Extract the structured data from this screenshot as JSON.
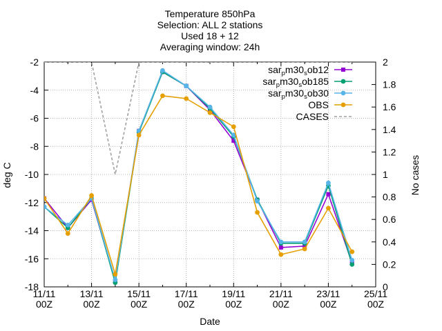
{
  "chart_data": {
    "type": "line",
    "title_lines": [
      "Temperature 850hPa",
      "Selection: ALL       2 stations",
      "Used 18 + 12",
      "Averaging window: 24h"
    ],
    "xlabel": "Date",
    "ylabel": "deg C",
    "y2label": "No cases",
    "x": [
      "11/11 00Z",
      "12/11 00Z",
      "13/11 00Z",
      "14/11 00Z",
      "15/11 00Z",
      "16/11 00Z",
      "17/11 00Z",
      "18/11 00Z",
      "19/11 00Z",
      "20/11 00Z",
      "21/11 00Z",
      "22/11 00Z",
      "23/11 00Z",
      "24/11 00Z"
    ],
    "xticks": [
      {
        "top": "11/11",
        "bottom": "00Z",
        "day": 0
      },
      {
        "top": "13/11",
        "bottom": "00Z",
        "day": 2
      },
      {
        "top": "15/11",
        "bottom": "00Z",
        "day": 4
      },
      {
        "top": "17/11",
        "bottom": "00Z",
        "day": 6
      },
      {
        "top": "19/11",
        "bottom": "00Z",
        "day": 8
      },
      {
        "top": "21/11",
        "bottom": "00Z",
        "day": 10
      },
      {
        "top": "23/11",
        "bottom": "00Z",
        "day": 12
      },
      {
        "top": "25/11",
        "bottom": "00Z",
        "day": 14
      }
    ],
    "xlim_days": [
      0,
      14
    ],
    "ylim": [
      -18,
      -2
    ],
    "yticks": [
      -18,
      -16,
      -14,
      -12,
      -10,
      -8,
      -6,
      -4,
      -2
    ],
    "y2lim": [
      0,
      2
    ],
    "y2ticks": [
      "0",
      "0.2",
      "0.4",
      "0.6",
      "0.8",
      "1",
      "1.2",
      "1.4",
      "1.6",
      "1.8",
      "2"
    ],
    "grid": true,
    "legend_position": "top-right",
    "series": [
      {
        "label_main": "sar",
        "label_sub": "p",
        "label_rest": "m30",
        "label_sub2": "s",
        "label_end": "ob12",
        "color": "#9400d3",
        "marker": "square",
        "values": [
          -11.7,
          -13.8,
          -11.8,
          -17.6,
          -6.9,
          -2.7,
          -3.7,
          -5.4,
          -7.6,
          -11.8,
          -15.2,
          -15.1,
          -11.4,
          -16.3
        ]
      },
      {
        "label_main": "sar",
        "label_sub": "p",
        "label_rest": "m30",
        "label_sub2": "s",
        "label_end": "ob185",
        "color": "#009e73",
        "marker": "circle",
        "values": [
          -12.3,
          -13.8,
          -11.7,
          -17.7,
          -7.0,
          -2.7,
          -3.7,
          -5.3,
          -7.3,
          -11.8,
          -14.9,
          -14.9,
          -10.8,
          -16.4
        ]
      },
      {
        "label_main": "sar",
        "label_sub": "p",
        "label_rest": "m30",
        "label_sub2": "s",
        "label_end": "ob30",
        "color": "#56b4e9",
        "marker": "circle",
        "values": [
          -12.3,
          -13.6,
          -11.7,
          -17.5,
          -6.9,
          -2.6,
          -3.7,
          -5.2,
          -7.2,
          -11.9,
          -14.8,
          -14.8,
          -10.6,
          -16.1
        ]
      },
      {
        "label_main": "OBS",
        "color": "#e69f00",
        "marker": "circle",
        "values": [
          -11.7,
          -14.2,
          -11.5,
          -17.1,
          -7.2,
          -4.4,
          -4.6,
          -5.6,
          -6.6,
          -12.7,
          -15.7,
          -15.3,
          -12.4,
          -15.5
        ]
      }
    ],
    "cases": {
      "label": "CASES",
      "color": "#a0a0a0",
      "axis": "y2",
      "values": [
        2,
        2,
        2,
        1,
        2,
        2,
        2,
        2,
        2,
        2,
        2,
        2,
        2,
        2
      ]
    }
  }
}
